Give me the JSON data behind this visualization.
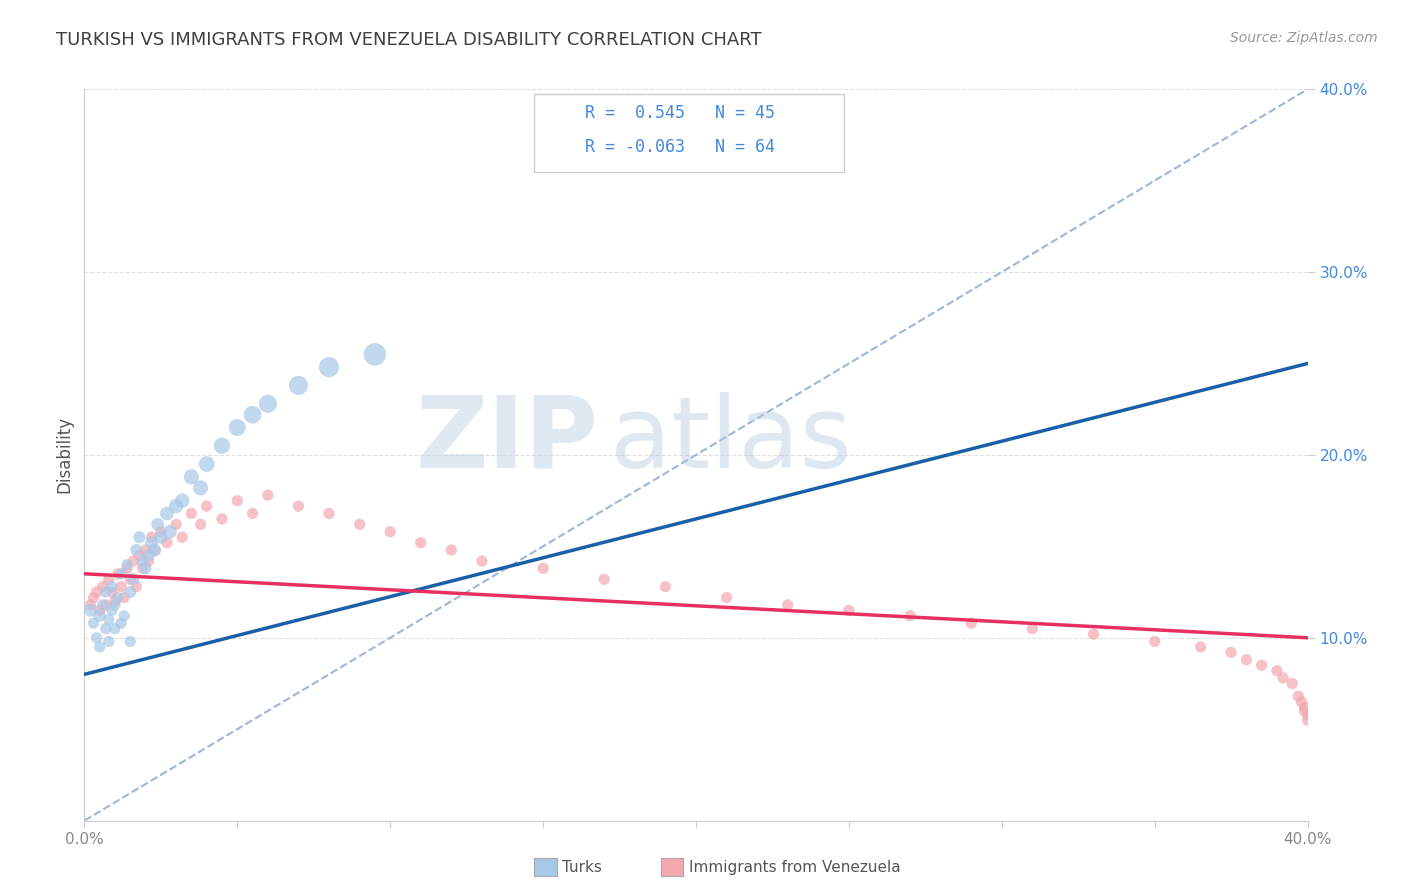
{
  "title": "TURKISH VS IMMIGRANTS FROM VENEZUELA DISABILITY CORRELATION CHART",
  "source": "Source: ZipAtlas.com",
  "ylabel": "Disability",
  "watermark_zip": "ZIP",
  "watermark_atlas": "atlas",
  "turks_R": 0.545,
  "turks_N": 45,
  "venezuela_R": -0.063,
  "venezuela_N": 64,
  "xlim": [
    0.0,
    0.4
  ],
  "ylim": [
    0.0,
    0.4
  ],
  "blue_color": "#a8c8e8",
  "pink_color": "#f4a8b0",
  "blue_line_color": "#1a5fa8",
  "pink_line_color": "#e83060",
  "dashed_line_color": "#9ab8d8",
  "title_color": "#404040",
  "legend_text_color": "#4488dd",
  "axis_tick_color": "#4488dd",
  "xtick_color": "#888888",
  "background_color": "#ffffff",
  "turks_x": [
    0.002,
    0.003,
    0.004,
    0.005,
    0.005,
    0.006,
    0.007,
    0.007,
    0.008,
    0.008,
    0.009,
    0.009,
    0.01,
    0.01,
    0.011,
    0.012,
    0.012,
    0.013,
    0.014,
    0.015,
    0.015,
    0.016,
    0.017,
    0.018,
    0.019,
    0.02,
    0.021,
    0.022,
    0.023,
    0.024,
    0.025,
    0.027,
    0.028,
    0.03,
    0.032,
    0.035,
    0.038,
    0.04,
    0.045,
    0.05,
    0.055,
    0.06,
    0.07,
    0.08,
    0.095
  ],
  "turks_y": [
    0.115,
    0.108,
    0.1,
    0.112,
    0.095,
    0.118,
    0.105,
    0.125,
    0.11,
    0.098,
    0.115,
    0.128,
    0.105,
    0.118,
    0.122,
    0.108,
    0.135,
    0.112,
    0.14,
    0.125,
    0.098,
    0.132,
    0.148,
    0.155,
    0.142,
    0.138,
    0.145,
    0.152,
    0.148,
    0.162,
    0.155,
    0.168,
    0.158,
    0.172,
    0.175,
    0.188,
    0.182,
    0.195,
    0.205,
    0.215,
    0.222,
    0.228,
    0.238,
    0.248,
    0.255
  ],
  "turks_size_scale": [
    80,
    60,
    60,
    70,
    60,
    60,
    60,
    60,
    60,
    60,
    60,
    60,
    60,
    60,
    60,
    60,
    60,
    60,
    60,
    70,
    60,
    70,
    70,
    70,
    70,
    70,
    70,
    80,
    80,
    80,
    80,
    90,
    90,
    100,
    100,
    110,
    110,
    120,
    130,
    140,
    150,
    160,
    180,
    200,
    250
  ],
  "venezuela_x": [
    0.002,
    0.003,
    0.004,
    0.005,
    0.006,
    0.007,
    0.008,
    0.009,
    0.01,
    0.011,
    0.012,
    0.013,
    0.014,
    0.015,
    0.016,
    0.017,
    0.018,
    0.019,
    0.02,
    0.021,
    0.022,
    0.023,
    0.025,
    0.027,
    0.03,
    0.032,
    0.035,
    0.038,
    0.04,
    0.045,
    0.05,
    0.055,
    0.06,
    0.07,
    0.08,
    0.09,
    0.1,
    0.11,
    0.12,
    0.13,
    0.15,
    0.17,
    0.19,
    0.21,
    0.23,
    0.25,
    0.27,
    0.29,
    0.31,
    0.33,
    0.35,
    0.365,
    0.375,
    0.38,
    0.385,
    0.39,
    0.392,
    0.395,
    0.397,
    0.398,
    0.399,
    0.399,
    0.4,
    0.4
  ],
  "venezuela_y": [
    0.118,
    0.122,
    0.125,
    0.115,
    0.128,
    0.118,
    0.132,
    0.125,
    0.12,
    0.135,
    0.128,
    0.122,
    0.138,
    0.132,
    0.142,
    0.128,
    0.145,
    0.138,
    0.148,
    0.142,
    0.155,
    0.148,
    0.158,
    0.152,
    0.162,
    0.155,
    0.168,
    0.162,
    0.172,
    0.165,
    0.175,
    0.168,
    0.178,
    0.172,
    0.168,
    0.162,
    0.158,
    0.152,
    0.148,
    0.142,
    0.138,
    0.132,
    0.128,
    0.122,
    0.118,
    0.115,
    0.112,
    0.108,
    0.105,
    0.102,
    0.098,
    0.095,
    0.092,
    0.088,
    0.085,
    0.082,
    0.078,
    0.075,
    0.068,
    0.065,
    0.062,
    0.06,
    0.058,
    0.055
  ],
  "venezuela_size_scale": [
    60,
    60,
    60,
    60,
    60,
    60,
    60,
    60,
    60,
    60,
    60,
    60,
    60,
    60,
    60,
    60,
    60,
    60,
    60,
    60,
    60,
    60,
    60,
    60,
    60,
    60,
    60,
    60,
    60,
    60,
    60,
    60,
    60,
    60,
    60,
    60,
    60,
    60,
    60,
    60,
    60,
    60,
    60,
    60,
    60,
    60,
    60,
    60,
    60,
    60,
    60,
    60,
    60,
    60,
    60,
    60,
    60,
    60,
    60,
    60,
    60,
    60,
    60,
    60
  ]
}
